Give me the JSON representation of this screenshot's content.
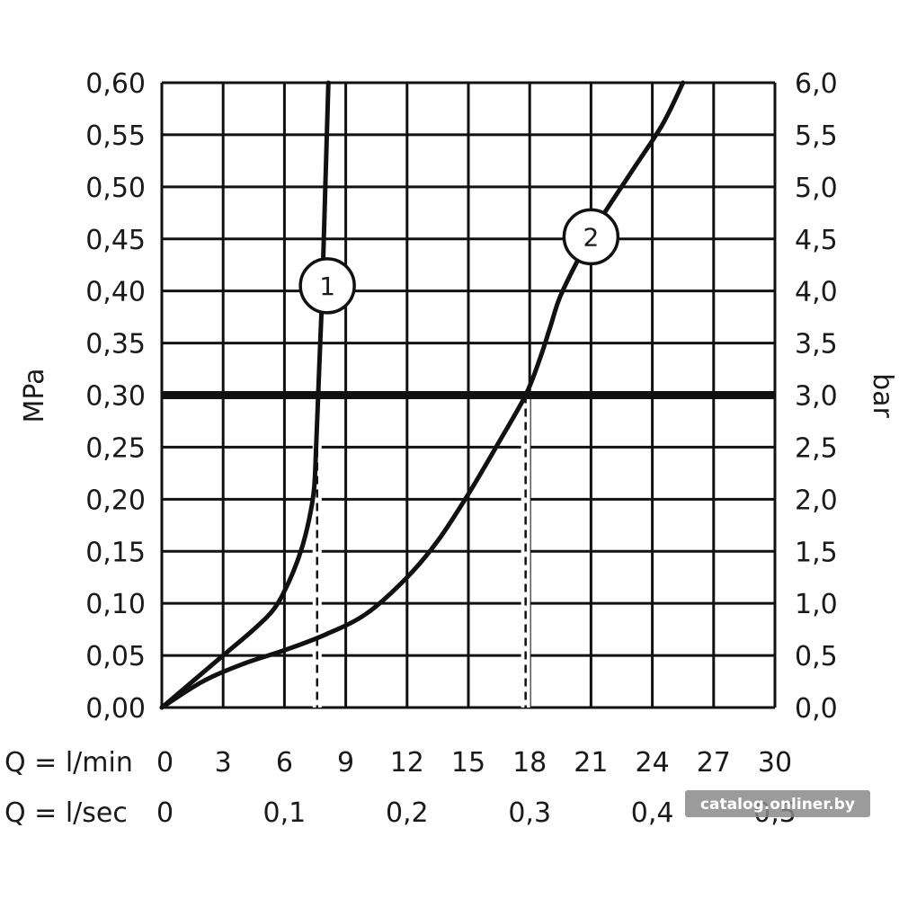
{
  "chart_data": {
    "type": "line",
    "left_axis": {
      "title": "MPa",
      "range": [
        0,
        0.6
      ],
      "ticks": [
        "0,00",
        "0,05",
        "0,10",
        "0,15",
        "0,20",
        "0,25",
        "0,30",
        "0,35",
        "0,40",
        "0,45",
        "0,50",
        "0,55",
        "0,60"
      ]
    },
    "right_axis": {
      "title": "bar",
      "range": [
        0,
        6
      ],
      "ticks": [
        "0,0",
        "0,5",
        "1,0",
        "1,5",
        "2,0",
        "2,5",
        "3,0",
        "3,5",
        "4,0",
        "4,5",
        "5,0",
        "5,5",
        "6,0"
      ]
    },
    "x_axis": {
      "range": [
        0,
        30
      ],
      "row1_label": "Q = l/min",
      "row1_ticks": [
        {
          "value": 0,
          "label": "0"
        },
        {
          "value": 3,
          "label": "3"
        },
        {
          "value": 6,
          "label": "6"
        },
        {
          "value": 9,
          "label": "9"
        },
        {
          "value": 12,
          "label": "12"
        },
        {
          "value": 15,
          "label": "15"
        },
        {
          "value": 18,
          "label": "18"
        },
        {
          "value": 21,
          "label": "21"
        },
        {
          "value": 24,
          "label": "24"
        },
        {
          "value": 27,
          "label": "27"
        },
        {
          "value": 30,
          "label": "30"
        }
      ],
      "row2_label": "Q = l/sec",
      "row2_ticks": [
        {
          "value": 0,
          "label": "0"
        },
        {
          "value": 6,
          "label": "0,1"
        },
        {
          "value": 12,
          "label": "0,2"
        },
        {
          "value": 18,
          "label": "0,3"
        },
        {
          "value": 24,
          "label": "0,4"
        },
        {
          "value": 30,
          "label": "0,5"
        }
      ]
    },
    "grid": true,
    "reference_line": {
      "y": 0.3
    },
    "series": [
      {
        "name": "1",
        "points": [
          [
            0,
            0
          ],
          [
            1.5,
            0.025
          ],
          [
            3,
            0.05
          ],
          [
            4.5,
            0.075
          ],
          [
            5.5,
            0.095
          ],
          [
            6.2,
            0.12
          ],
          [
            6.8,
            0.15
          ],
          [
            7.2,
            0.18
          ],
          [
            7.45,
            0.21
          ],
          [
            7.55,
            0.25
          ],
          [
            7.65,
            0.3
          ],
          [
            7.75,
            0.35
          ],
          [
            7.85,
            0.4
          ],
          [
            8.0,
            0.5
          ],
          [
            8.15,
            0.6
          ]
        ],
        "drop_x": 7.6,
        "marker_pos": [
          8.1,
          0.405
        ]
      },
      {
        "name": "2",
        "points": [
          [
            0,
            0
          ],
          [
            2,
            0.025
          ],
          [
            4,
            0.042
          ],
          [
            6,
            0.055
          ],
          [
            8,
            0.07
          ],
          [
            10,
            0.09
          ],
          [
            12,
            0.125
          ],
          [
            13.5,
            0.16
          ],
          [
            15,
            0.205
          ],
          [
            16.5,
            0.255
          ],
          [
            17.8,
            0.3
          ],
          [
            18.5,
            0.335
          ],
          [
            19,
            0.365
          ],
          [
            19.5,
            0.395
          ],
          [
            20.5,
            0.435
          ],
          [
            21.5,
            0.47
          ],
          [
            23,
            0.515
          ],
          [
            24.5,
            0.56
          ],
          [
            25.5,
            0.6
          ]
        ],
        "drop_x": 17.8,
        "marker_pos": [
          21.0,
          0.452
        ]
      }
    ]
  },
  "watermark": "catalog.onliner.by"
}
